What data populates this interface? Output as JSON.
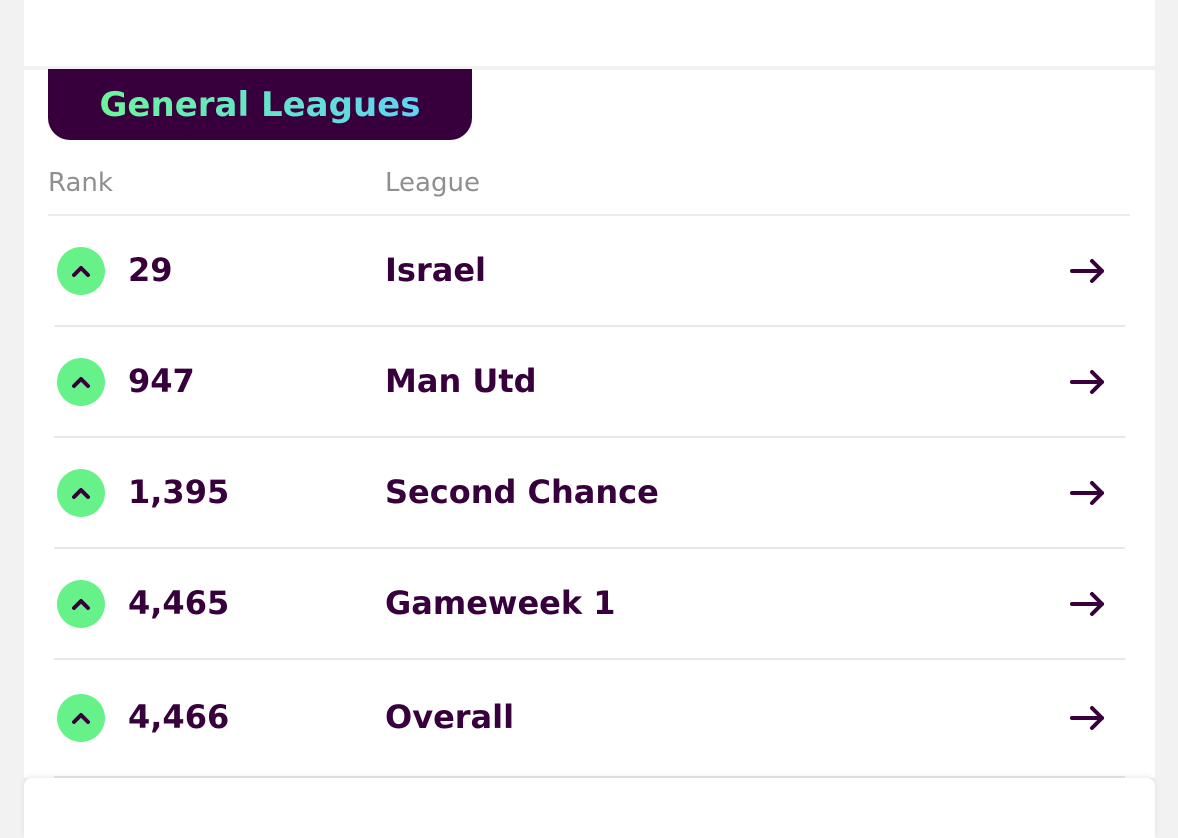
{
  "section": {
    "title": "General Leagues"
  },
  "table": {
    "columns": [
      "Rank",
      "League"
    ],
    "rows": [
      [
        "29",
        "Israel"
      ],
      [
        "947",
        "Man Utd"
      ],
      [
        "1,395",
        "Second Chance"
      ],
      [
        "4,465",
        "Gameweek 1"
      ],
      [
        "4,466",
        "Overall"
      ]
    ]
  }
}
